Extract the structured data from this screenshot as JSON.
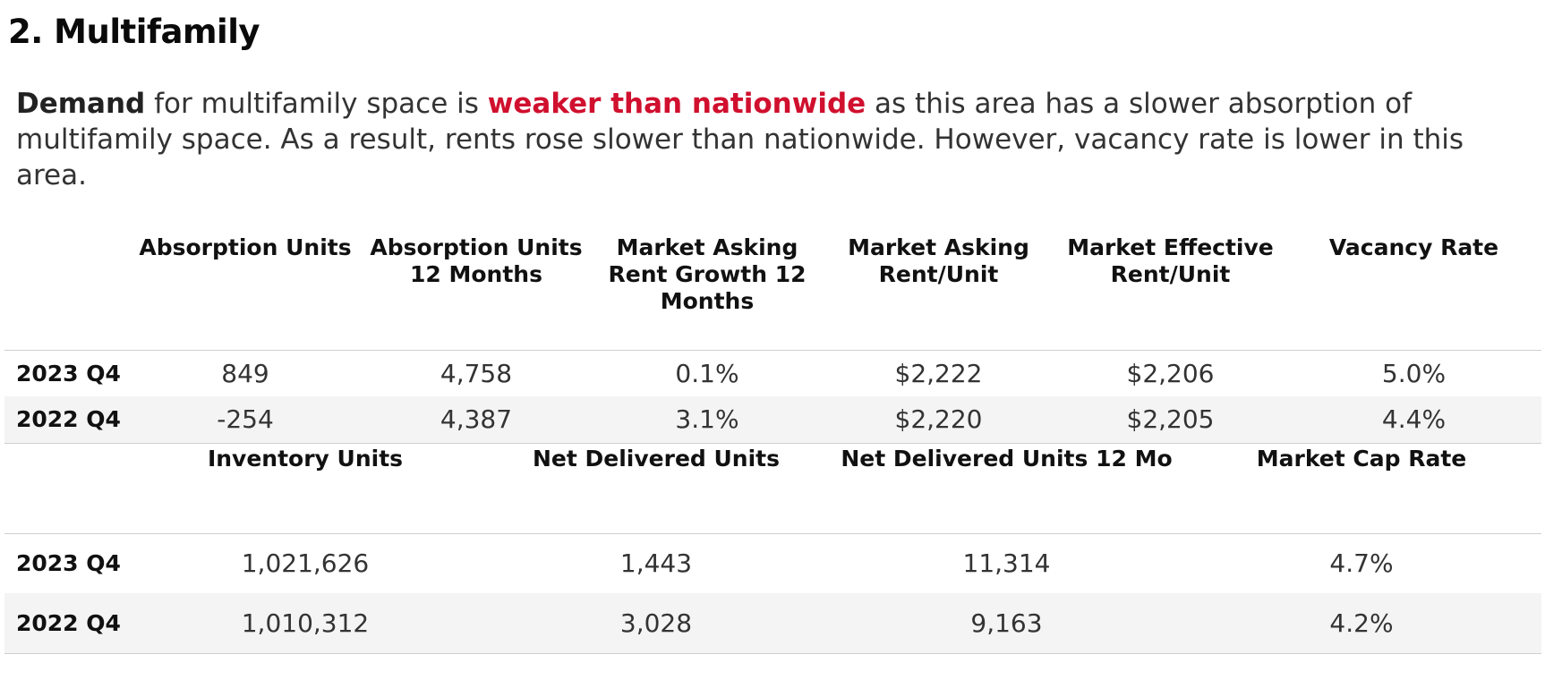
{
  "section": {
    "title": "2. Multifamily"
  },
  "summary": {
    "lead_bold": "Demand",
    "text_1": " for multifamily space is ",
    "highlight": "weaker than nationwide",
    "text_2": " as this area has a slower absorption of multifamily space. As a result, rents rose slower than nationwide. However, vacancy rate is lower in this area."
  },
  "colors": {
    "highlight": "#d0102e",
    "row_shade": "#f4f4f4",
    "rule": "#cfcfcf"
  },
  "table_1": {
    "headers": [
      "Absorption Units",
      "Absorption Units 12 Months",
      "Market Asking Rent Growth 12 Months",
      "Market Asking Rent/Unit",
      "Market Effective Rent/Unit",
      "Vacancy Rate"
    ],
    "rows": [
      {
        "label": "2023 Q4",
        "cells": [
          "849",
          "4,758",
          "0.1%",
          "$2,222",
          "$2,206",
          "5.0%"
        ]
      },
      {
        "label": "2022 Q4",
        "cells": [
          "-254",
          "4,387",
          "3.1%",
          "$2,220",
          "$2,205",
          "4.4%"
        ]
      }
    ]
  },
  "table_2": {
    "headers": [
      "Inventory Units",
      "Net Delivered Units",
      "Net Delivered Units 12 Mo",
      "Market Cap Rate"
    ],
    "rows": [
      {
        "label": "2023 Q4",
        "cells": [
          "1,021,626",
          "1,443",
          "11,314",
          "4.7%"
        ]
      },
      {
        "label": "2022 Q4",
        "cells": [
          "1,010,312",
          "3,028",
          "9,163",
          "4.2%"
        ]
      }
    ]
  }
}
